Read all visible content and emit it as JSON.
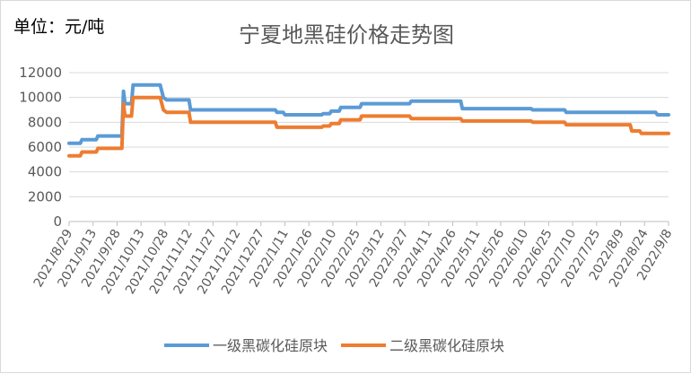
{
  "unit_label": "单位：元/吨",
  "chart_data": {
    "type": "line",
    "title": "宁夏地黑硅价格走势图",
    "xlabel": "",
    "ylabel": "",
    "ylim": [
      0,
      12000
    ],
    "yticks": [
      0,
      2000,
      4000,
      6000,
      8000,
      10000,
      12000
    ],
    "grid": "horizontal",
    "legend_position": "bottom",
    "x_tick_labels": [
      "2021/8/29",
      "2021/9/13",
      "2021/9/28",
      "2021/10/13",
      "2021/10/28",
      "2021/11/12",
      "2021/11/27",
      "2021/12/12",
      "2021/12/27",
      "2022/1/11",
      "2022/1/26",
      "2022/2/10",
      "2022/2/25",
      "2022/3/12",
      "2022/3/27",
      "2022/4/11",
      "2022/4/26",
      "2022/5/11",
      "2022/5/26",
      "2022/6/10",
      "2022/6/25",
      "2022/7/10",
      "2022/7/25",
      "2022/8/9",
      "2022/8/24",
      "2022/9/8"
    ],
    "series": [
      {
        "name": "一级黑碳化硅原块",
        "color": "#5b9bd5",
        "points": [
          [
            "2021-08-29",
            6300
          ],
          [
            "2021-09-05",
            6300
          ],
          [
            "2021-09-06",
            6600
          ],
          [
            "2021-09-15",
            6600
          ],
          [
            "2021-09-16",
            6900
          ],
          [
            "2021-10-01",
            6900
          ],
          [
            "2021-10-02",
            10500
          ],
          [
            "2021-10-03",
            9500
          ],
          [
            "2021-10-07",
            9500
          ],
          [
            "2021-10-08",
            11000
          ],
          [
            "2021-10-25",
            11000
          ],
          [
            "2021-10-27",
            10000
          ],
          [
            "2021-10-29",
            9800
          ],
          [
            "2021-11-12",
            9800
          ],
          [
            "2021-11-13",
            9000
          ],
          [
            "2022-01-05",
            9000
          ],
          [
            "2022-01-06",
            8800
          ],
          [
            "2022-01-10",
            8800
          ],
          [
            "2022-01-11",
            8600
          ],
          [
            "2022-02-03",
            8600
          ],
          [
            "2022-02-04",
            8700
          ],
          [
            "2022-02-08",
            8700
          ],
          [
            "2022-02-09",
            8900
          ],
          [
            "2022-02-14",
            8900
          ],
          [
            "2022-02-15",
            9200
          ],
          [
            "2022-02-27",
            9200
          ],
          [
            "2022-02-28",
            9500
          ],
          [
            "2022-03-30",
            9500
          ],
          [
            "2022-03-31",
            9700
          ],
          [
            "2022-05-01",
            9700
          ],
          [
            "2022-05-02",
            9100
          ],
          [
            "2022-06-14",
            9100
          ],
          [
            "2022-06-15",
            9000
          ],
          [
            "2022-07-05",
            9000
          ],
          [
            "2022-07-06",
            8800
          ],
          [
            "2022-08-31",
            8800
          ],
          [
            "2022-09-01",
            8600
          ],
          [
            "2022-09-08",
            8600
          ]
        ]
      },
      {
        "name": "二级黑碳化硅原块",
        "color": "#ed7d31",
        "points": [
          [
            "2021-08-29",
            5300
          ],
          [
            "2021-09-05",
            5300
          ],
          [
            "2021-09-06",
            5600
          ],
          [
            "2021-09-15",
            5600
          ],
          [
            "2021-09-16",
            5900
          ],
          [
            "2021-10-01",
            5900
          ],
          [
            "2021-10-02",
            9500
          ],
          [
            "2021-10-03",
            8500
          ],
          [
            "2021-10-07",
            8500
          ],
          [
            "2021-10-08",
            10000
          ],
          [
            "2021-10-25",
            10000
          ],
          [
            "2021-10-27",
            9000
          ],
          [
            "2021-10-29",
            8800
          ],
          [
            "2021-11-12",
            8800
          ],
          [
            "2021-11-13",
            8000
          ],
          [
            "2022-01-05",
            8000
          ],
          [
            "2022-01-06",
            7600
          ],
          [
            "2022-02-03",
            7600
          ],
          [
            "2022-02-04",
            7700
          ],
          [
            "2022-02-08",
            7700
          ],
          [
            "2022-02-09",
            7900
          ],
          [
            "2022-02-14",
            7900
          ],
          [
            "2022-02-15",
            8200
          ],
          [
            "2022-02-27",
            8200
          ],
          [
            "2022-02-28",
            8500
          ],
          [
            "2022-03-30",
            8500
          ],
          [
            "2022-03-31",
            8300
          ],
          [
            "2022-05-01",
            8300
          ],
          [
            "2022-05-02",
            8100
          ],
          [
            "2022-06-14",
            8100
          ],
          [
            "2022-06-15",
            8000
          ],
          [
            "2022-07-05",
            8000
          ],
          [
            "2022-07-06",
            7800
          ],
          [
            "2022-08-15",
            7800
          ],
          [
            "2022-08-16",
            7300
          ],
          [
            "2022-08-21",
            7300
          ],
          [
            "2022-08-22",
            7100
          ],
          [
            "2022-09-08",
            7100
          ]
        ]
      }
    ]
  }
}
